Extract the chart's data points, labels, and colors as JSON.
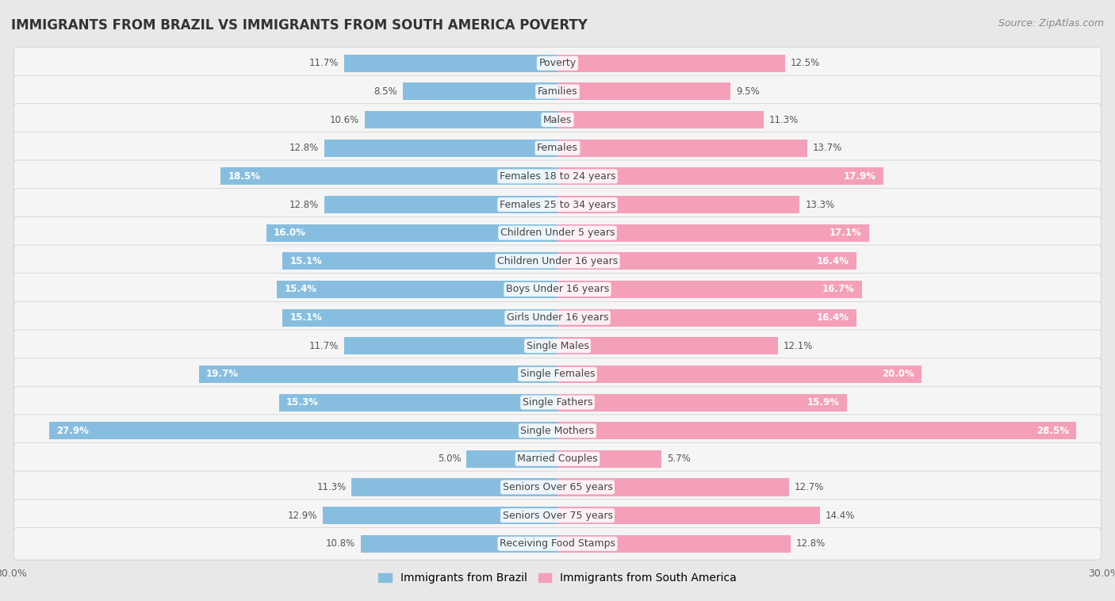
{
  "title": "IMMIGRANTS FROM BRAZIL VS IMMIGRANTS FROM SOUTH AMERICA POVERTY",
  "source": "Source: ZipAtlas.com",
  "categories": [
    "Poverty",
    "Families",
    "Males",
    "Females",
    "Females 18 to 24 years",
    "Females 25 to 34 years",
    "Children Under 5 years",
    "Children Under 16 years",
    "Boys Under 16 years",
    "Girls Under 16 years",
    "Single Males",
    "Single Females",
    "Single Fathers",
    "Single Mothers",
    "Married Couples",
    "Seniors Over 65 years",
    "Seniors Over 75 years",
    "Receiving Food Stamps"
  ],
  "brazil_values": [
    11.7,
    8.5,
    10.6,
    12.8,
    18.5,
    12.8,
    16.0,
    15.1,
    15.4,
    15.1,
    11.7,
    19.7,
    15.3,
    27.9,
    5.0,
    11.3,
    12.9,
    10.8
  ],
  "south_america_values": [
    12.5,
    9.5,
    11.3,
    13.7,
    17.9,
    13.3,
    17.1,
    16.4,
    16.7,
    16.4,
    12.1,
    20.0,
    15.9,
    28.5,
    5.7,
    12.7,
    14.4,
    12.8
  ],
  "brazil_color": "#87BEDF",
  "south_america_color": "#F4A0B8",
  "brazil_label": "Immigrants from Brazil",
  "south_america_label": "Immigrants from South America",
  "background_color": "#e8e8e8",
  "row_bg_color": "#f5f5f5",
  "axis_max": 30.0,
  "bar_height": 0.62,
  "label_fontsize": 9.0,
  "title_fontsize": 12,
  "value_fontsize": 8.5,
  "inside_threshold": 15.0
}
